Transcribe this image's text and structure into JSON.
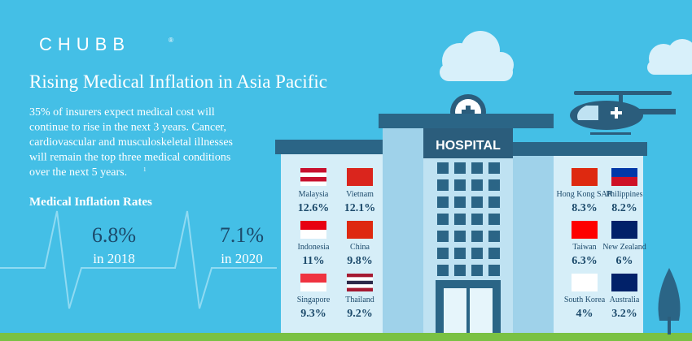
{
  "brand": {
    "logo": "CHUBB",
    "mark": "®"
  },
  "title": "Rising Medical Inflation in Asia Pacific",
  "intro": {
    "lines": [
      "35% of insurers expect medical cost will",
      "continue to rise in the next 3 years. Cancer,",
      "cardiovascular and musculoskeletal illnesses",
      "will remain the top three medical conditions",
      "over the next 5 years."
    ],
    "footnote": "1"
  },
  "section_title": "Medical Inflation Rates",
  "rates": [
    {
      "value": "6.8%",
      "year": "in 2018"
    },
    {
      "value": "7.1%",
      "year": "in 2020"
    }
  ],
  "building_sign": "HOSPITAL",
  "countries_left": [
    {
      "name": "Malaysia",
      "rate": "12.6%"
    },
    {
      "name": "Vietnam",
      "rate": "12.1%"
    },
    {
      "name": "Indonesia",
      "rate": "11%"
    },
    {
      "name": "China",
      "rate": "9.8%"
    },
    {
      "name": "Singapore",
      "rate": "9.3%"
    },
    {
      "name": "Thailand",
      "rate": "9.2%"
    }
  ],
  "countries_right": [
    {
      "name": "Hong Kong SAR",
      "rate": "8.3%"
    },
    {
      "name": "Philippines",
      "rate": "8.2%"
    },
    {
      "name": "Taiwan",
      "rate": "6.3%"
    },
    {
      "name": "New Zealand",
      "rate": "6%"
    },
    {
      "name": "South Korea",
      "rate": "4%"
    },
    {
      "name": "Australia",
      "rate": "3.2%"
    }
  ]
}
